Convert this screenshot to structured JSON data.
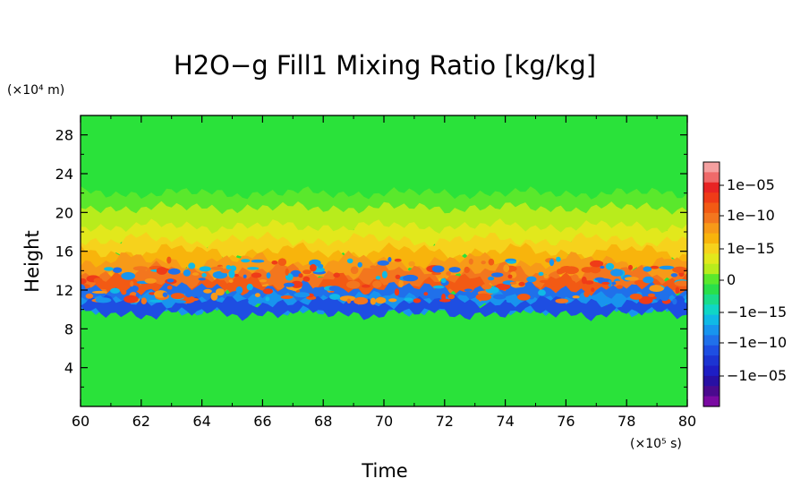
{
  "chart_data": {
    "type": "heatmap",
    "title": "H2O−g Fill1 Mixing Ratio [kg/kg]",
    "xlabel": "Time",
    "ylabel": "Height",
    "x_unit": "(×10⁵ s)",
    "y_unit": "(×10⁴ m)",
    "xlim": [
      60,
      80
    ],
    "ylim": [
      0,
      30
    ],
    "x_ticks": [
      "60",
      "62",
      "64",
      "66",
      "68",
      "70",
      "72",
      "74",
      "76",
      "78",
      "80"
    ],
    "y_ticks": [
      "4",
      "8",
      "12",
      "16",
      "20",
      "24",
      "28"
    ],
    "grid": false,
    "colorbar": {
      "labels": [
        "1e−05",
        "1e−10",
        "1e−15",
        "0",
        "−1e−15",
        "−1e−10",
        "−1e−05"
      ],
      "colors": [
        "#f4a0a0",
        "#ef6a6a",
        "#e82424",
        "#ef3b18",
        "#f25a14",
        "#f3761e",
        "#f79a18",
        "#f8b40c",
        "#f6d21c",
        "#e2e81c",
        "#b8ec1c",
        "#5ae82c",
        "#2adf4a",
        "#1adc8a",
        "#10d6c6",
        "#10b9e6",
        "#1894ee",
        "#2070ea",
        "#1e4ee2",
        "#1c34d2",
        "#1e1ec4",
        "#2810a4",
        "#4a0a8e",
        "#7a0aa2"
      ]
    },
    "bands": [
      {
        "height_range": [
          0,
          9.5
        ],
        "value": "0"
      },
      {
        "height_range": [
          9.5,
          11.0
        ],
        "value": "−1e−05 to −1e−10"
      },
      {
        "height_range": [
          11.0,
          14.5
        ],
        "value": "1e−10"
      },
      {
        "height_range": [
          14.5,
          16.0
        ],
        "value": "1e−12"
      },
      {
        "height_range": [
          16.0,
          18.5
        ],
        "value": "1e−14"
      },
      {
        "height_range": [
          18.5,
          21.0
        ],
        "value": "1e−16"
      },
      {
        "height_range": [
          21.0,
          30.0
        ],
        "value": "0"
      }
    ]
  }
}
